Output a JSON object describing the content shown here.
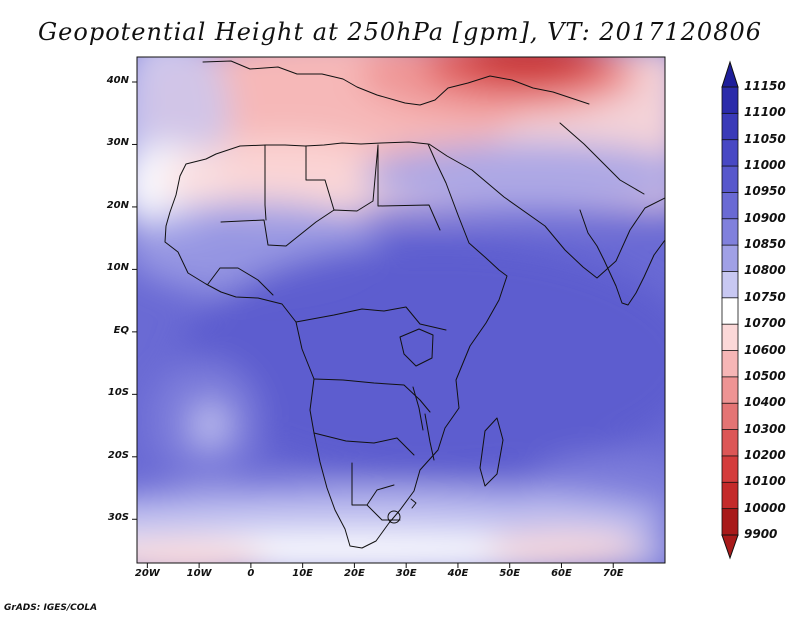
{
  "title": "Geopotential Height at 250hPa [gpm], VT: 2017120806",
  "credit": "GrADS: IGES/COLA",
  "map": {
    "lat_labels": [
      "40N",
      "30N",
      "20N",
      "10N",
      "EQ",
      "10S",
      "20S",
      "30S"
    ],
    "lat_values": [
      40,
      30,
      20,
      10,
      0,
      -10,
      -20,
      -30
    ],
    "lon_labels": [
      "20W",
      "10W",
      "0",
      "10E",
      "20E",
      "30E",
      "40E",
      "50E",
      "60E",
      "70E"
    ],
    "lon_values": [
      -20,
      -10,
      0,
      10,
      20,
      30,
      40,
      50,
      60,
      70
    ],
    "lat_range": [
      -37,
      44
    ],
    "lon_range": [
      -22,
      80
    ]
  },
  "legend": {
    "levels": [
      "11150",
      "11100",
      "11050",
      "11000",
      "10950",
      "10900",
      "10850",
      "10800",
      "10750",
      "10700",
      "10600",
      "10500",
      "10400",
      "10300",
      "10200",
      "10100",
      "10000",
      "9900"
    ],
    "colors": [
      "#1e1e9a",
      "#2b2baa",
      "#3a3ab8",
      "#4848c4",
      "#5858cc",
      "#6a6ad4",
      "#8080dc",
      "#a0a0e6",
      "#c8c8f2",
      "#ffffff",
      "#fbd8d8",
      "#f6b6b6",
      "#ee9494",
      "#e47474",
      "#dc5656",
      "#d43c3c",
      "#c42a2a",
      "#a81a1a"
    ]
  }
}
